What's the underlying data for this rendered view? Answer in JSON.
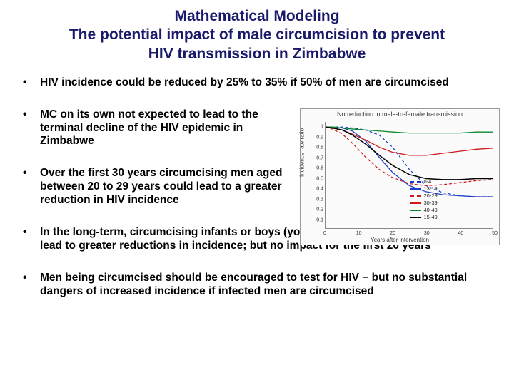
{
  "title": {
    "line1": "Mathematical Modeling",
    "line2": "The potential impact of male circumcision to prevent",
    "line3": "HIV transmission in Zimbabwe",
    "color": "#1a1a6a",
    "fontsize": 21,
    "weight": 700
  },
  "bullets": [
    {
      "text": "HIV incidence could be reduced by 25% to 35% if 50% of men are circumcised",
      "narrow": false
    },
    {
      "text": "MC on its own not expected to lead to the terminal decline of the HIV epidemic in Zimbabwe",
      "narrow": true
    },
    {
      "text": "Over the first 30 years circumcising men aged between 20 to 29 years could lead to a greater reduction in HIV incidence",
      "narrow": true
    },
    {
      "text": "In the long-term, circumcising infants or boys (younger than 19 years of age) could lead to greater reductions in incidence; but no impact for the first 20 years",
      "narrow": false
    },
    {
      "text": "Men being circumcised should be encouraged to test for HIV − but no substantial dangers of increased incidence if infected men are circumcised",
      "narrow": false
    }
  ],
  "bullet_style": {
    "fontsize": 15.5,
    "weight": 700,
    "color": "#000000",
    "marker": "•"
  },
  "chart": {
    "type": "line",
    "title": "No reduction in male-to-female transmission",
    "title_fontsize": 9,
    "xlabel": "Years after intervention",
    "ylabel": "Incidence rate ratio",
    "label_fontsize": 8,
    "xlim": [
      0,
      50
    ],
    "ylim": [
      0,
      1.05
    ],
    "xticks": [
      0,
      10,
      20,
      30,
      40,
      50
    ],
    "yticks": [
      0.1,
      0.2,
      0.3,
      0.4,
      0.5,
      0.6,
      0.7,
      0.8,
      0.9,
      1
    ],
    "background_color": "#fbfbfb",
    "axis_color": "#888888",
    "series": [
      {
        "label": "0-4",
        "color": "#1a3cc8",
        "style": "dashed",
        "width": 1.3,
        "x": [
          0,
          2,
          5,
          8,
          12,
          16,
          20,
          25,
          30,
          35,
          40,
          45,
          50
        ],
        "y": [
          1.0,
          1.0,
          1.0,
          0.99,
          0.97,
          0.92,
          0.8,
          0.58,
          0.42,
          0.35,
          0.32,
          0.31,
          0.31
        ]
      },
      {
        "label": "13-19",
        "color": "#1a3cc8",
        "style": "solid",
        "width": 1.3,
        "x": [
          0,
          2,
          5,
          8,
          12,
          16,
          20,
          25,
          30,
          35,
          40,
          45,
          50
        ],
        "y": [
          1.0,
          1.0,
          0.99,
          0.96,
          0.86,
          0.7,
          0.55,
          0.42,
          0.36,
          0.33,
          0.32,
          0.31,
          0.31
        ]
      },
      {
        "label": "20-29",
        "color": "#d01818",
        "style": "dashed",
        "width": 1.3,
        "x": [
          0,
          2,
          5,
          8,
          12,
          16,
          20,
          25,
          30,
          35,
          40,
          45,
          50
        ],
        "y": [
          1.0,
          0.98,
          0.93,
          0.84,
          0.7,
          0.58,
          0.5,
          0.44,
          0.42,
          0.43,
          0.45,
          0.47,
          0.48
        ]
      },
      {
        "label": "30-39",
        "color": "#d01818",
        "style": "solid",
        "width": 1.3,
        "x": [
          0,
          2,
          5,
          8,
          12,
          16,
          20,
          25,
          30,
          35,
          40,
          45,
          50
        ],
        "y": [
          1.0,
          0.99,
          0.97,
          0.93,
          0.87,
          0.8,
          0.75,
          0.72,
          0.72,
          0.74,
          0.76,
          0.78,
          0.79
        ]
      },
      {
        "label": "40-49",
        "color": "#0a8a2a",
        "style": "solid",
        "width": 1.3,
        "x": [
          0,
          2,
          5,
          8,
          12,
          16,
          20,
          25,
          30,
          35,
          40,
          45,
          50
        ],
        "y": [
          1.0,
          1.0,
          0.99,
          0.98,
          0.97,
          0.96,
          0.95,
          0.94,
          0.94,
          0.94,
          0.94,
          0.95,
          0.95
        ]
      },
      {
        "label": "15-49",
        "color": "#000000",
        "style": "solid",
        "width": 1.5,
        "x": [
          0,
          2,
          5,
          8,
          12,
          16,
          20,
          25,
          30,
          35,
          40,
          45,
          50
        ],
        "y": [
          1.0,
          0.99,
          0.97,
          0.92,
          0.83,
          0.72,
          0.62,
          0.53,
          0.49,
          0.48,
          0.48,
          0.49,
          0.49
        ]
      }
    ],
    "legend_position": "inside-lower-center"
  }
}
